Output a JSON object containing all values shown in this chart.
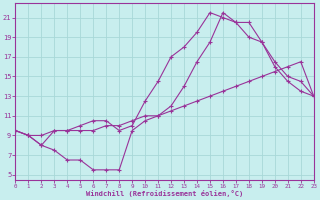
{
  "xlabel": "Windchill (Refroidissement éolien,°C)",
  "bg_color": "#c8eeee",
  "grid_color": "#a8d8d8",
  "line_color": "#993399",
  "xlim": [
    0,
    23
  ],
  "ylim": [
    4.5,
    22.5
  ],
  "xticks": [
    0,
    1,
    2,
    3,
    4,
    5,
    6,
    7,
    8,
    9,
    10,
    11,
    12,
    13,
    14,
    15,
    16,
    17,
    18,
    19,
    20,
    21,
    22,
    23
  ],
  "yticks": [
    5,
    7,
    9,
    11,
    13,
    15,
    17,
    19,
    21
  ],
  "line1_x": [
    0,
    1,
    2,
    3,
    4,
    5,
    6,
    7,
    8,
    9,
    10,
    11,
    12,
    13,
    14,
    15,
    16,
    17,
    18,
    19,
    20,
    21,
    22,
    23
  ],
  "line1_y": [
    9.5,
    9.0,
    8.0,
    7.5,
    6.5,
    6.5,
    5.5,
    5.5,
    5.5,
    9.5,
    10.5,
    11.0,
    12.0,
    14.0,
    16.5,
    18.5,
    21.5,
    20.5,
    20.5,
    18.5,
    16.0,
    14.5,
    13.5,
    13.0
  ],
  "line2_x": [
    0,
    1,
    2,
    3,
    4,
    5,
    6,
    7,
    8,
    9,
    10,
    11,
    12,
    13,
    14,
    15,
    16,
    17,
    18,
    19,
    20,
    21,
    22,
    23
  ],
  "line2_y": [
    9.5,
    9.0,
    9.0,
    9.5,
    9.5,
    9.5,
    9.5,
    10.0,
    10.0,
    10.5,
    11.0,
    11.0,
    11.5,
    12.0,
    12.5,
    13.0,
    13.5,
    14.0,
    14.5,
    15.0,
    15.5,
    16.0,
    16.5,
    13.0
  ],
  "line3_x": [
    0,
    1,
    2,
    3,
    4,
    5,
    6,
    7,
    8,
    9,
    10,
    11,
    12,
    13,
    14,
    15,
    16,
    17,
    18,
    19,
    20,
    21,
    22,
    23
  ],
  "line3_y": [
    9.5,
    9.0,
    8.0,
    9.5,
    9.5,
    10.0,
    10.5,
    10.5,
    9.5,
    10.0,
    12.5,
    14.5,
    17.0,
    18.0,
    19.5,
    21.5,
    21.0,
    20.5,
    19.0,
    18.5,
    16.5,
    15.0,
    14.5,
    13.0
  ]
}
